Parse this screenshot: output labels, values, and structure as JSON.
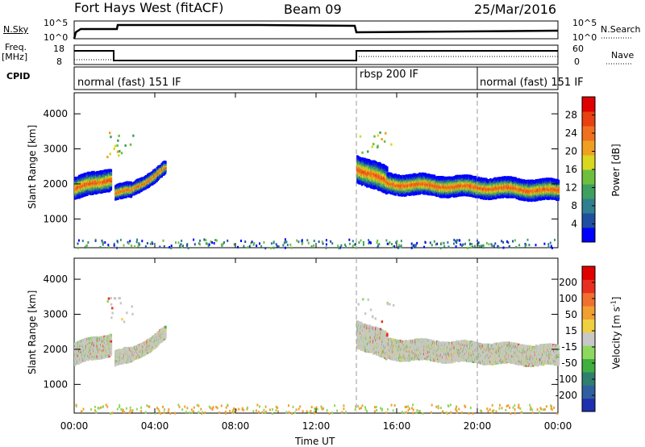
{
  "header": {
    "radar": "Fort Hays West (fitACF)",
    "beam": "Beam 09",
    "date": "25/Mar/2016"
  },
  "panel_labels": {
    "nsky": "N.Sky",
    "nsky_ticks": [
      "10^5",
      "10^0"
    ],
    "nsearch": "N.Search",
    "nsearch_ticks": [
      "10^5",
      "10^0"
    ],
    "freq": "Freq.",
    "freq_unit": "[MHz]",
    "freq_ticks": [
      "18",
      "8"
    ],
    "nave": "Nave",
    "nave_ticks": [
      "60",
      "0"
    ],
    "cpid": "CPID"
  },
  "cpid_segments": [
    {
      "label": "normal (fast) 151 IF",
      "start_h": 0,
      "end_h": 14
    },
    {
      "label": "rbsp 200 IF",
      "start_h": 14,
      "end_h": 20
    },
    {
      "label": "normal (fast) 151 IF",
      "start_h": 20,
      "end_h": 24
    }
  ],
  "axes": {
    "ylabel": "Slant Range [km]",
    "xlabel": "Time UT",
    "x_ticks": [
      "00:00",
      "04:00",
      "08:00",
      "12:00",
      "16:00",
      "20:00",
      "00:00"
    ],
    "y_ticks": [
      "1000",
      "2000",
      "3000",
      "4000"
    ]
  },
  "power_scale": {
    "label": "Power [dB]",
    "ticks": [
      "28",
      "24",
      "20",
      "16",
      "12",
      "8",
      "4"
    ],
    "colors": [
      "#0000ff",
      "#1f4fa0",
      "#2f7f8f",
      "#3f9f5f",
      "#6fbf3f",
      "#d8d820",
      "#f0a020",
      "#f07020",
      "#e84010",
      "#e00000"
    ]
  },
  "velocity_scale": {
    "label": "Velocity [m s",
    "label_sup": "-1",
    "label_end": "]",
    "ticks": [
      "200",
      "100",
      "50",
      "15",
      "-15",
      "-50",
      "-100",
      "-200"
    ],
    "colors": [
      "#1f2fb0",
      "#2f5fa0",
      "#2f7f6f",
      "#3faf3f",
      "#8fd85f",
      "#c8c8c8",
      "#f0d040",
      "#f0a030",
      "#f07030",
      "#e83020",
      "#e00000"
    ]
  },
  "chart_data": {
    "type": "heatmap",
    "x_range_hours": [
      0,
      24
    ],
    "y_range_km": [
      180,
      4600
    ],
    "echo_bands": [
      {
        "t": [
          0.0,
          1.8
        ],
        "center_km": [
          1900,
          2200
        ],
        "width_km": 550
      },
      {
        "t": [
          2.0,
          2.8
        ],
        "center_km": [
          1800,
          1850
        ],
        "width_km": 350
      },
      {
        "t": [
          2.8,
          4.5
        ],
        "center_km": [
          1850,
          2500
        ],
        "width_km": 300
      },
      {
        "t": [
          14.0,
          15.5
        ],
        "center_km": [
          2500,
          2100
        ],
        "width_km": 700
      },
      {
        "t": [
          15.5,
          24.0
        ],
        "center_km": [
          2050,
          1850
        ],
        "width_km": 500
      }
    ]
  }
}
